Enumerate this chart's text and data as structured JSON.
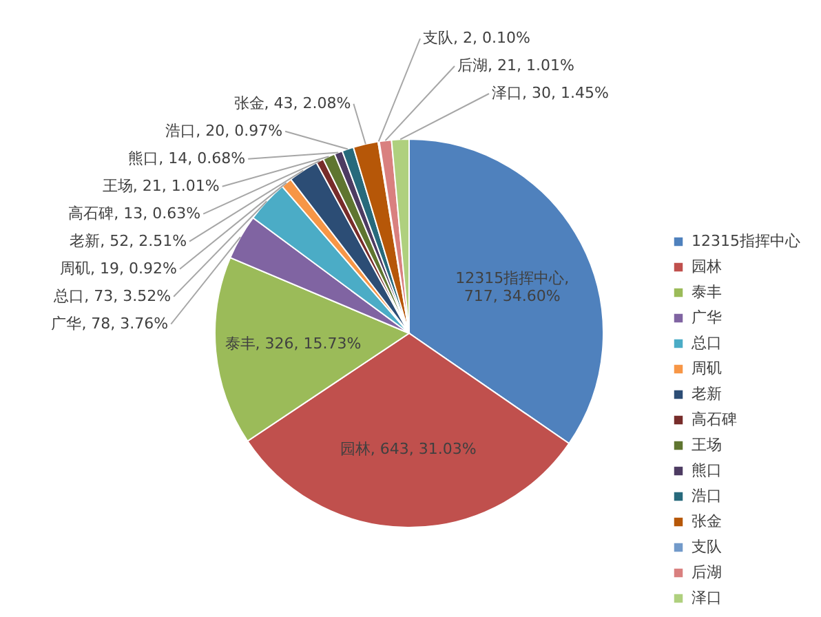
{
  "chart_data": {
    "type": "pie",
    "categories": [
      "12315指挥中心",
      "园林",
      "泰丰",
      "广华",
      "总口",
      "周矶",
      "老新",
      "高石碑",
      "王场",
      "熊口",
      "浩口",
      "张金",
      "支队",
      "后湖",
      "泽口"
    ],
    "values": [
      717,
      643,
      326,
      78,
      73,
      19,
      52,
      13,
      21,
      14,
      20,
      43,
      2,
      21,
      30
    ],
    "value_labels": [
      "12315指挥中心,\n717, 34.60%",
      "园林, 643, 31.03%",
      "泰丰, 326, 15.73%",
      "广华, 78, 3.76%",
      "总口, 73, 3.52%",
      "周矶, 19, 0.92%",
      "老新, 52, 2.51%",
      "高石碑, 13, 0.63%",
      "王场, 21, 1.01%",
      "熊口, 14, 0.68%",
      "浩口, 20, 0.97%",
      "张金, 43, 2.08%",
      "支队, 2, 0.10%",
      "后湖, 21, 1.01%",
      "泽口, 30, 1.45%"
    ],
    "colors": [
      "#4f81bd",
      "#c0504d",
      "#9bbb59",
      "#8064a2",
      "#4bacc6",
      "#f79646",
      "#2c4d75",
      "#772c2a",
      "#5f7530",
      "#4d3b62",
      "#276a7c",
      "#b65708",
      "#729aca",
      "#d9807f",
      "#afd07e"
    ],
    "legend": "right"
  }
}
